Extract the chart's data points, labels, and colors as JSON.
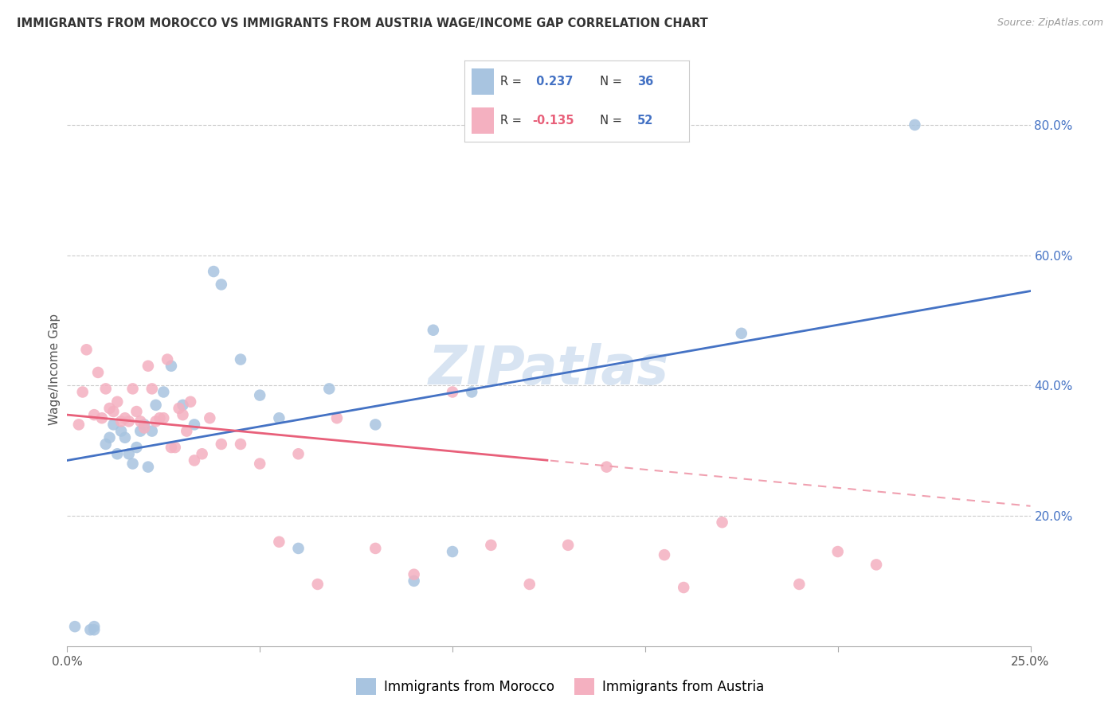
{
  "title": "IMMIGRANTS FROM MOROCCO VS IMMIGRANTS FROM AUSTRIA WAGE/INCOME GAP CORRELATION CHART",
  "source": "Source: ZipAtlas.com",
  "ylabel": "Wage/Income Gap",
  "xlim": [
    0.0,
    0.25
  ],
  "ylim": [
    0.0,
    0.85
  ],
  "yticks_right": [
    0.2,
    0.4,
    0.6,
    0.8
  ],
  "yticklabels_right": [
    "20.0%",
    "40.0%",
    "60.0%",
    "80.0%"
  ],
  "morocco_color": "#a8c4e0",
  "austria_color": "#f4b0c0",
  "morocco_line_color": "#4472c4",
  "austria_line_color": "#e8607a",
  "austria_dash_color": "#f0a0b0",
  "morocco_R": 0.237,
  "morocco_N": 36,
  "austria_R": -0.135,
  "austria_N": 52,
  "watermark": "ZIPatlas",
  "morocco_scatter_x": [
    0.002,
    0.006,
    0.007,
    0.007,
    0.01,
    0.011,
    0.012,
    0.013,
    0.014,
    0.015,
    0.016,
    0.017,
    0.018,
    0.019,
    0.02,
    0.021,
    0.022,
    0.023,
    0.025,
    0.027,
    0.03,
    0.033,
    0.038,
    0.04,
    0.045,
    0.05,
    0.055,
    0.06,
    0.068,
    0.08,
    0.09,
    0.095,
    0.1,
    0.105,
    0.175,
    0.22
  ],
  "morocco_scatter_y": [
    0.03,
    0.025,
    0.025,
    0.03,
    0.31,
    0.32,
    0.34,
    0.295,
    0.33,
    0.32,
    0.295,
    0.28,
    0.305,
    0.33,
    0.34,
    0.275,
    0.33,
    0.37,
    0.39,
    0.43,
    0.37,
    0.34,
    0.575,
    0.555,
    0.44,
    0.385,
    0.35,
    0.15,
    0.395,
    0.34,
    0.1,
    0.485,
    0.145,
    0.39,
    0.48,
    0.8
  ],
  "austria_scatter_x": [
    0.003,
    0.004,
    0.005,
    0.007,
    0.008,
    0.009,
    0.01,
    0.011,
    0.012,
    0.013,
    0.014,
    0.015,
    0.016,
    0.017,
    0.018,
    0.019,
    0.02,
    0.021,
    0.022,
    0.023,
    0.024,
    0.025,
    0.026,
    0.027,
    0.028,
    0.029,
    0.03,
    0.031,
    0.032,
    0.033,
    0.035,
    0.037,
    0.04,
    0.045,
    0.05,
    0.055,
    0.06,
    0.065,
    0.07,
    0.08,
    0.09,
    0.1,
    0.11,
    0.12,
    0.13,
    0.14,
    0.155,
    0.16,
    0.17,
    0.19,
    0.2,
    0.21
  ],
  "austria_scatter_y": [
    0.34,
    0.39,
    0.455,
    0.355,
    0.42,
    0.35,
    0.395,
    0.365,
    0.36,
    0.375,
    0.345,
    0.35,
    0.345,
    0.395,
    0.36,
    0.345,
    0.335,
    0.43,
    0.395,
    0.345,
    0.35,
    0.35,
    0.44,
    0.305,
    0.305,
    0.365,
    0.355,
    0.33,
    0.375,
    0.285,
    0.295,
    0.35,
    0.31,
    0.31,
    0.28,
    0.16,
    0.295,
    0.095,
    0.35,
    0.15,
    0.11,
    0.39,
    0.155,
    0.095,
    0.155,
    0.275,
    0.14,
    0.09,
    0.19,
    0.095,
    0.145,
    0.125
  ],
  "morocco_line_x0": 0.0,
  "morocco_line_y0": 0.285,
  "morocco_line_x1": 0.25,
  "morocco_line_y1": 0.545,
  "austria_line_x0": 0.0,
  "austria_line_y0": 0.355,
  "austria_line_x1": 0.25,
  "austria_line_y1": 0.215
}
